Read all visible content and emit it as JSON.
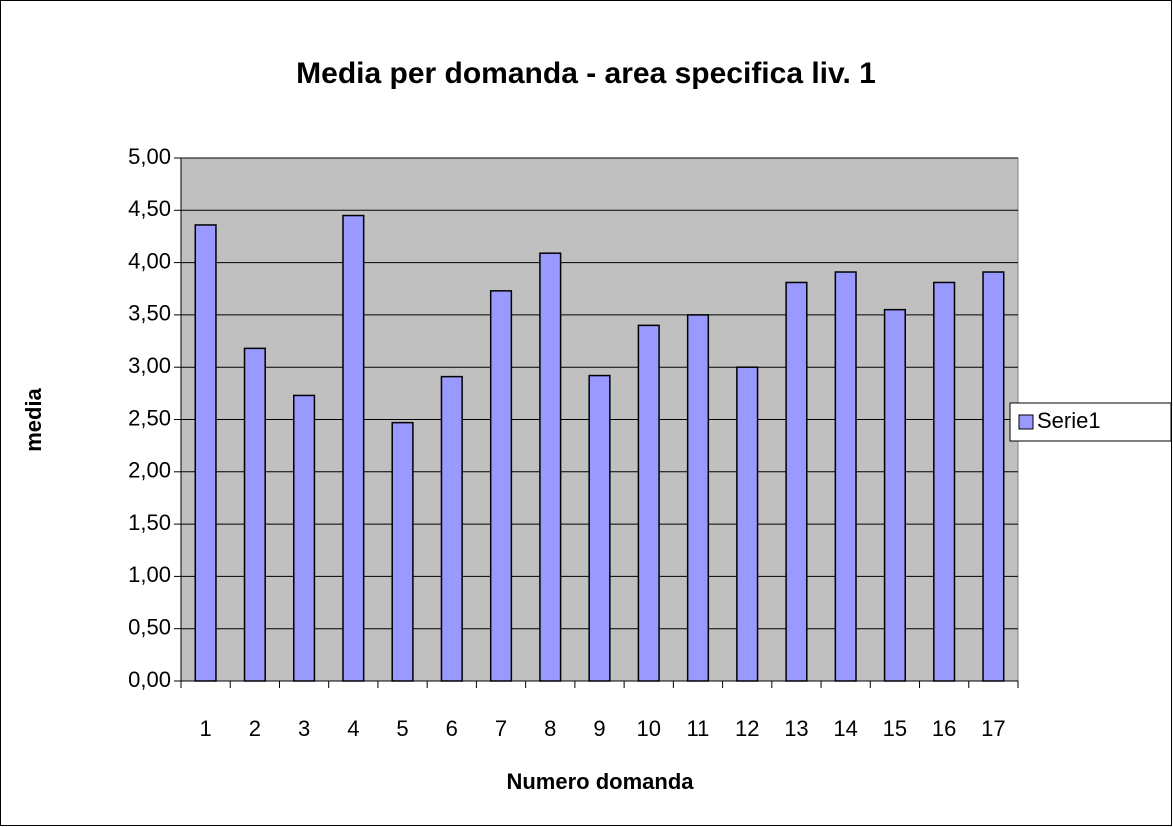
{
  "chart_data": {
    "type": "bar",
    "title": "Media per domanda - area specifica liv. 1",
    "x_label": "Numero domanda",
    "y_label": "media",
    "categories": [
      "1",
      "2",
      "3",
      "4",
      "5",
      "6",
      "7",
      "8",
      "9",
      "10",
      "11",
      "12",
      "13",
      "14",
      "15",
      "16",
      "17"
    ],
    "series": [
      {
        "name": "Serie1",
        "color": "#9999ff",
        "values": [
          4.36,
          3.18,
          2.73,
          4.45,
          2.47,
          2.91,
          3.73,
          4.09,
          2.92,
          3.4,
          3.5,
          3.0,
          3.81,
          3.91,
          3.55,
          3.81,
          3.91
        ]
      }
    ],
    "ylim": [
      0,
      5
    ],
    "yticks": [
      {
        "value": 0,
        "label": "0,00"
      },
      {
        "value": 0.5,
        "label": "0,50"
      },
      {
        "value": 1,
        "label": "1,00"
      },
      {
        "value": 1.5,
        "label": "1,50"
      },
      {
        "value": 2,
        "label": "2,00"
      },
      {
        "value": 2.5,
        "label": "2,50"
      },
      {
        "value": 3,
        "label": "3,00"
      },
      {
        "value": 3.5,
        "label": "3,50"
      },
      {
        "value": 4,
        "label": "4,00"
      },
      {
        "value": 4.5,
        "label": "4,50"
      },
      {
        "value": 5,
        "label": "5,00"
      }
    ],
    "grid": true,
    "plot_background": "#c0c0c0",
    "legend": "right"
  }
}
